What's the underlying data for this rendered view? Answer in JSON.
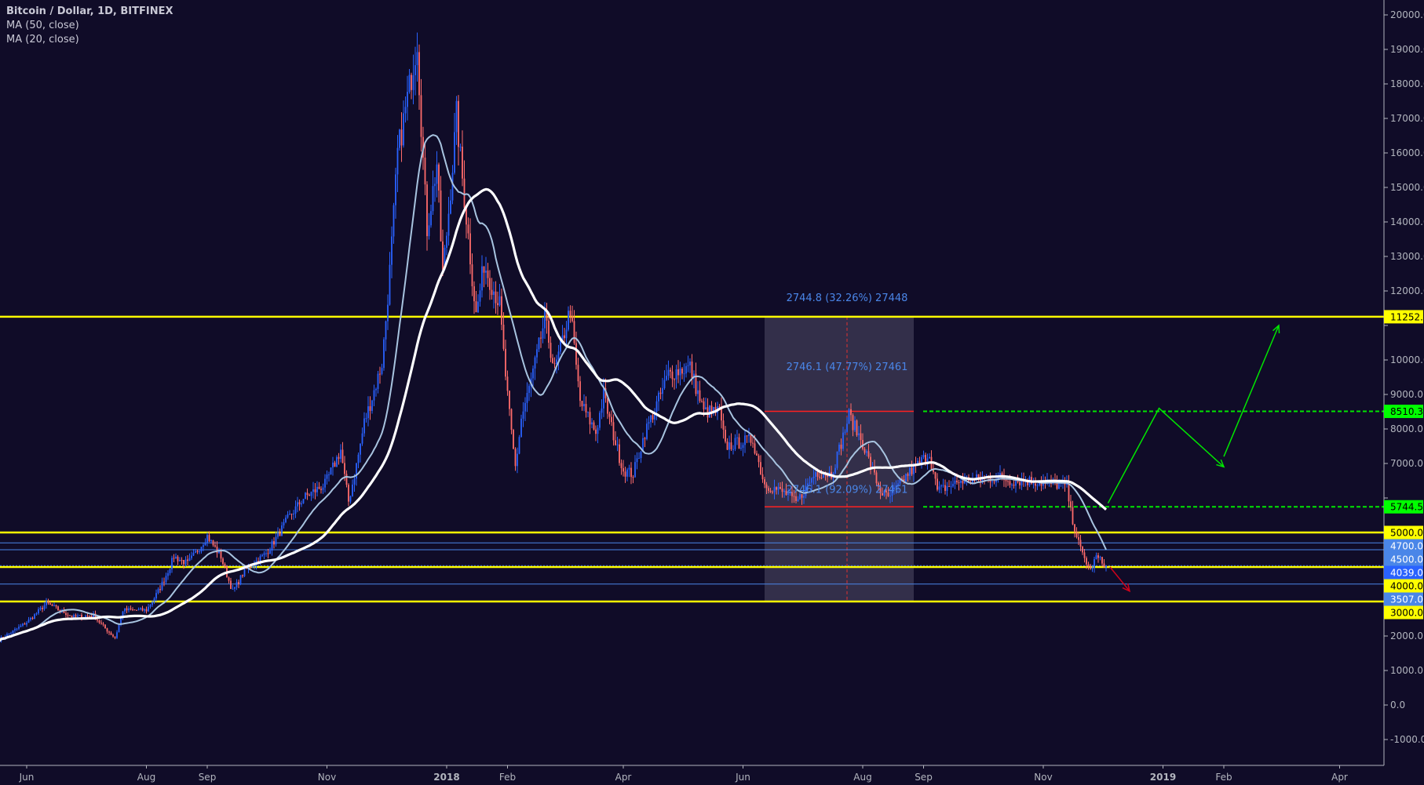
{
  "legend": {
    "title": "Bitcoin / Dollar, 1D, BITFINEX",
    "ma50": "MA (50, close)",
    "ma20": "MA (20, close)"
  },
  "colors": {
    "background": "#100c28",
    "bull": "#2962ff",
    "bear": "#ff6b6b",
    "ma50": "#ffffff",
    "ma20": "#a8c4e0",
    "support_resistance": "#ffff00",
    "target": "#00e600",
    "blue_level": "#4a86e8",
    "range_box": "#3a3650",
    "measure_text": "#4a86e8",
    "bear_arrow": "#d0021b"
  },
  "chart_data": {
    "type": "candlestick",
    "symbol": "Bitcoin / Dollar",
    "interval": "1D",
    "exchange": "BITFINEX",
    "ylim": [
      -1500,
      20300
    ],
    "y_ticks": [
      -1000,
      0,
      1000,
      2000,
      3000,
      4000,
      5000,
      6000,
      7000,
      8000,
      9000,
      10000,
      11000,
      12000,
      13000,
      14000,
      15000,
      16000,
      17000,
      18000,
      19000,
      20000
    ],
    "x_ticks": [
      {
        "label": "Jun",
        "date": "2017-06-01"
      },
      {
        "label": "Aug",
        "date": "2017-08-01"
      },
      {
        "label": "Sep",
        "date": "2017-09-01"
      },
      {
        "label": "Nov",
        "date": "2017-11-01"
      },
      {
        "label": "2018",
        "date": "2018-01-01",
        "bold": true
      },
      {
        "label": "Feb",
        "date": "2018-02-01"
      },
      {
        "label": "Apr",
        "date": "2018-04-01"
      },
      {
        "label": "Jun",
        "date": "2018-06-01"
      },
      {
        "label": "Aug",
        "date": "2018-08-01"
      },
      {
        "label": "Sep",
        "date": "2018-09-01"
      },
      {
        "label": "Nov",
        "date": "2018-11-01"
      },
      {
        "label": "2019",
        "date": "2019-01-01",
        "bold": true
      },
      {
        "label": "Feb",
        "date": "2019-02-01"
      },
      {
        "label": "Apr",
        "date": "2019-04-01"
      }
    ],
    "date_range": [
      "2017-05-18",
      "2019-04-20"
    ],
    "approx_closes": [
      [
        "2017-05-18",
        1900
      ],
      [
        "2017-06-01",
        2400
      ],
      [
        "2017-06-11",
        2950
      ],
      [
        "2017-06-25",
        2550
      ],
      [
        "2017-07-05",
        2600
      ],
      [
        "2017-07-16",
        1950
      ],
      [
        "2017-07-20",
        2750
      ],
      [
        "2017-08-01",
        2750
      ],
      [
        "2017-08-08",
        3400
      ],
      [
        "2017-08-15",
        4300
      ],
      [
        "2017-08-22",
        4100
      ],
      [
        "2017-09-01",
        4900
      ],
      [
        "2017-09-08",
        4300
      ],
      [
        "2017-09-14",
        3300
      ],
      [
        "2017-09-20",
        3900
      ],
      [
        "2017-10-01",
        4400
      ],
      [
        "2017-10-12",
        5400
      ],
      [
        "2017-10-20",
        6000
      ],
      [
        "2017-10-31",
        6400
      ],
      [
        "2017-11-08",
        7400
      ],
      [
        "2017-11-12",
        5900
      ],
      [
        "2017-11-20",
        8200
      ],
      [
        "2017-11-29",
        9900
      ],
      [
        "2017-12-07",
        16000
      ],
      [
        "2017-12-17",
        19300
      ],
      [
        "2017-12-22",
        13800
      ],
      [
        "2017-12-27",
        15700
      ],
      [
        "2017-12-30",
        12500
      ],
      [
        "2018-01-06",
        17100
      ],
      [
        "2018-01-12",
        13600
      ],
      [
        "2018-01-16",
        11300
      ],
      [
        "2018-01-20",
        12800
      ],
      [
        "2018-01-28",
        11600
      ],
      [
        "2018-02-05",
        6900
      ],
      [
        "2018-02-08",
        8300
      ],
      [
        "2018-02-20",
        11200
      ],
      [
        "2018-02-25",
        9700
      ],
      [
        "2018-03-05",
        11500
      ],
      [
        "2018-03-10",
        8800
      ],
      [
        "2018-03-18",
        7900
      ],
      [
        "2018-03-22",
        9000
      ],
      [
        "2018-04-01",
        6800
      ],
      [
        "2018-04-06",
        6700
      ],
      [
        "2018-04-12",
        7900
      ],
      [
        "2018-04-24",
        9600
      ],
      [
        "2018-05-05",
        9800
      ],
      [
        "2018-05-12",
        8500
      ],
      [
        "2018-05-20",
        8500
      ],
      [
        "2018-05-23",
        7500
      ],
      [
        "2018-06-06",
        7700
      ],
      [
        "2018-06-12",
        6400
      ],
      [
        "2018-06-24",
        6100
      ],
      [
        "2018-06-28",
        5850
      ],
      [
        "2018-07-08",
        6750
      ],
      [
        "2018-07-16",
        6700
      ],
      [
        "2018-07-25",
        8400
      ],
      [
        "2018-08-01",
        7600
      ],
      [
        "2018-08-10",
        6200
      ],
      [
        "2018-08-14",
        6000
      ],
      [
        "2018-08-24",
        6700
      ],
      [
        "2018-09-04",
        7300
      ],
      [
        "2018-09-08",
        6200
      ],
      [
        "2018-09-20",
        6500
      ],
      [
        "2018-10-10",
        6600
      ],
      [
        "2018-10-15",
        6500
      ],
      [
        "2018-10-25",
        6500
      ],
      [
        "2018-11-13",
        6350
      ],
      [
        "2018-11-15",
        5600
      ],
      [
        "2018-11-20",
        4500
      ],
      [
        "2018-11-25",
        3900
      ],
      [
        "2018-11-28",
        4300
      ],
      [
        "2018-12-03",
        4039
      ]
    ],
    "horizontal_levels": [
      {
        "price": 11252.3,
        "label": "11252.3",
        "kind": "yellow"
      },
      {
        "price": 8510.3,
        "label": "8510.3",
        "kind": "green-dashed"
      },
      {
        "price": 5744.5,
        "label": "5744.5",
        "kind": "green-dashed"
      },
      {
        "price": 5000.0,
        "label": "5000.0",
        "kind": "yellow"
      },
      {
        "price": 4700.0,
        "label": "4700.0",
        "kind": "blue"
      },
      {
        "price": 4500.0,
        "label": "4500.0",
        "kind": "blue"
      },
      {
        "price": 4039.0,
        "label": "4039.0",
        "kind": "last-price"
      },
      {
        "price": 4000.0,
        "label": "4000.0",
        "kind": "yellow"
      },
      {
        "price": 3507.0,
        "label": "3507.0",
        "kind": "blue"
      },
      {
        "price": 3000.0,
        "label": "3000.0",
        "kind": "yellow"
      }
    ],
    "range_box": {
      "start": "2018-06-12",
      "end": "2018-08-27",
      "top": 11252.3,
      "bottom": 3000,
      "mid": "2018-07-24",
      "red_lines": [
        8510,
        5744.5
      ]
    },
    "annotations": [
      {
        "text": "2744.8 (32.26%) 27448",
        "price": 11700
      },
      {
        "text": "2746.1 (47.77%) 27461",
        "price": 9700
      },
      {
        "text": "2746.1 (92.09%) 27461",
        "price": 6150
      }
    ],
    "projection_arrows": [
      {
        "points": [
          [
            "2018-12-04",
            5850
          ],
          [
            "2018-12-30",
            8600
          ],
          [
            "2019-02-01",
            6900
          ]
        ],
        "kind": "green"
      },
      {
        "points": [
          [
            "2019-02-01",
            7200
          ],
          [
            "2019-03-01",
            11000
          ]
        ],
        "kind": "green"
      },
      {
        "points": [
          [
            "2018-12-05",
            4000
          ],
          [
            "2018-12-15",
            3300
          ]
        ],
        "kind": "red"
      }
    ]
  }
}
